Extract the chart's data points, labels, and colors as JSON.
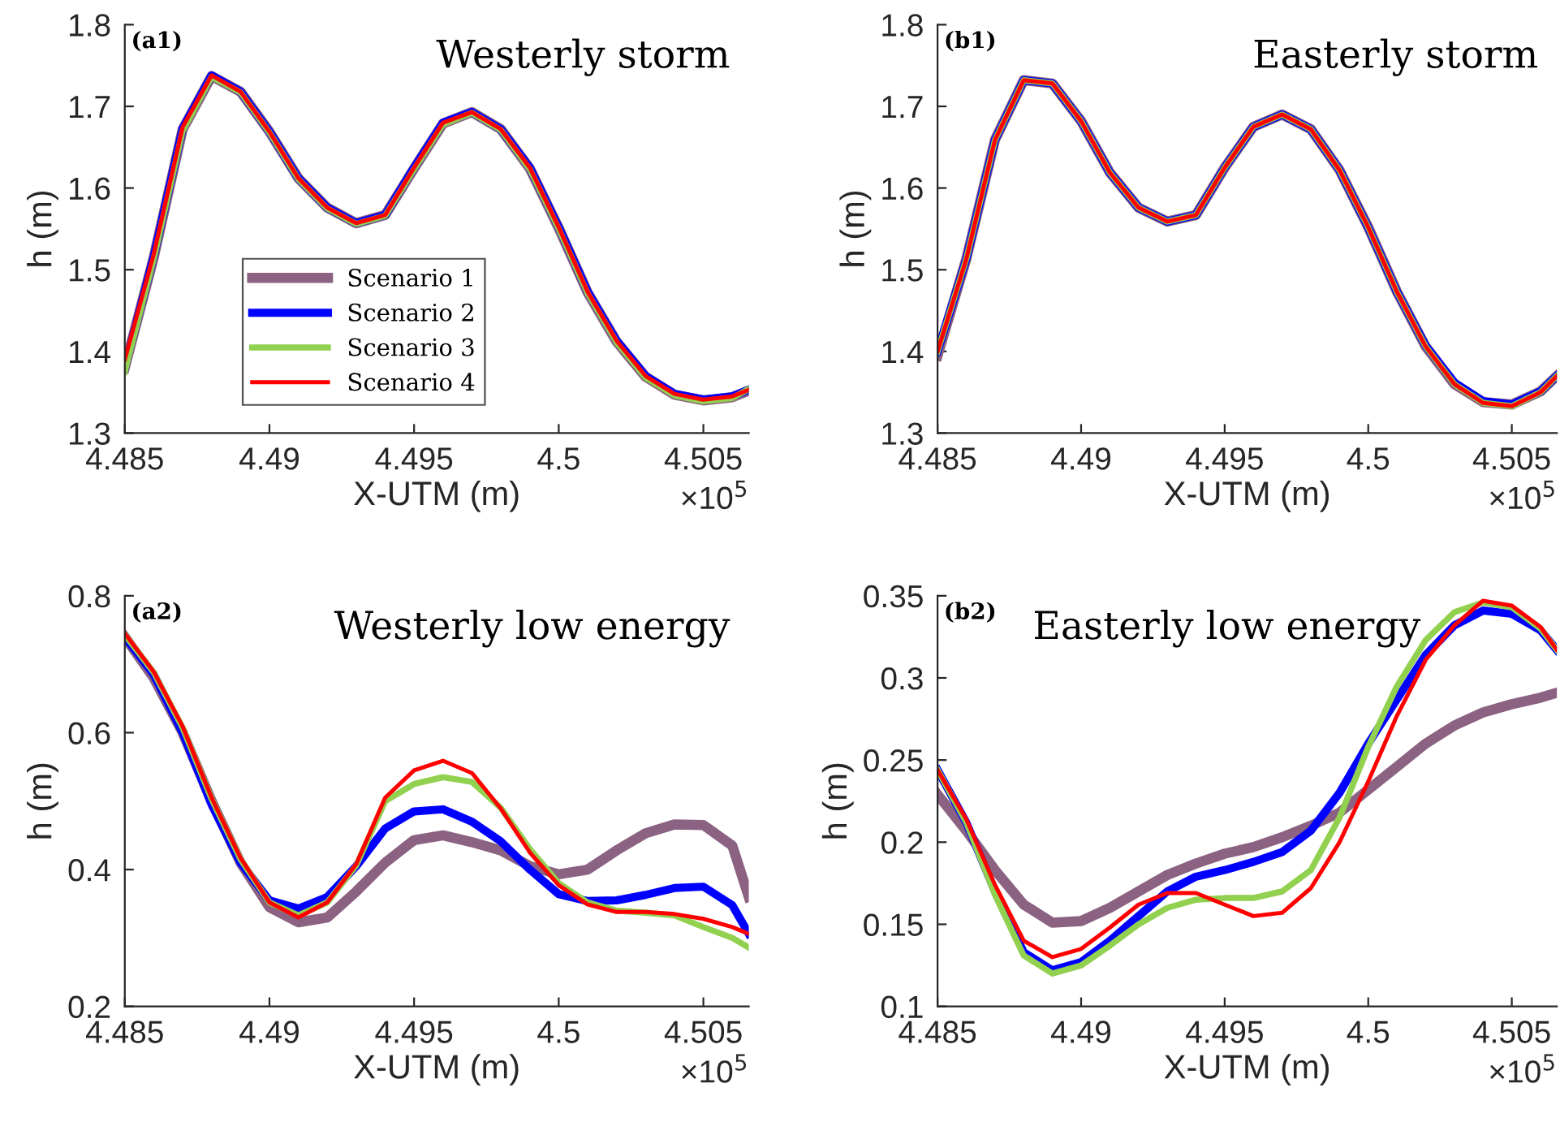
{
  "chart_data": [
    {
      "type": "line",
      "title": "Westerly storm",
      "xlabel": "X-UTM (m)",
      "ylabel": "h (m)",
      "annotations": [
        "(a1)",
        "×10$^{5}$"
      ],
      "x": [
        4.485,
        4.486,
        4.487,
        4.488,
        4.489,
        4.49,
        4.491,
        4.492,
        4.493,
        4.494,
        4.495,
        4.496,
        4.497,
        4.498,
        4.499,
        4.5,
        4.501,
        4.502,
        4.503,
        4.504,
        4.505,
        4.506,
        4.50657
      ],
      "xlim": [
        4.485,
        4.50657
      ],
      "xticks": [
        4.485,
        4.49,
        4.495,
        4.5,
        4.505
      ],
      "ylim": [
        1.3,
        1.8
      ],
      "yticks": [
        1.3,
        1.4,
        1.5,
        1.6,
        1.7,
        1.8
      ],
      "grid": false,
      "legend": "lower left",
      "series": [
        {
          "name": "Scenario 1",
          "color": "#8b6281",
          "values": [
            1.38,
            1.515,
            1.672,
            1.737,
            1.718,
            1.669,
            1.612,
            1.576,
            1.557,
            1.567,
            1.624,
            1.679,
            1.693,
            1.672,
            1.624,
            1.551,
            1.472,
            1.412,
            1.369,
            1.347,
            1.34,
            1.344,
            1.352
          ]
        },
        {
          "name": "Scenario 2",
          "color": "#0000ff",
          "values": [
            1.38,
            1.516,
            1.673,
            1.738,
            1.718,
            1.669,
            1.612,
            1.576,
            1.557,
            1.567,
            1.625,
            1.68,
            1.693,
            1.672,
            1.625,
            1.552,
            1.473,
            1.413,
            1.37,
            1.348,
            1.341,
            1.345,
            1.353
          ]
        },
        {
          "name": "Scenario 3",
          "color": "#92d050",
          "values": [
            1.375,
            1.513,
            1.67,
            1.736,
            1.717,
            1.668,
            1.611,
            1.575,
            1.556,
            1.566,
            1.623,
            1.678,
            1.692,
            1.671,
            1.623,
            1.55,
            1.471,
            1.411,
            1.368,
            1.346,
            1.339,
            1.343,
            1.354
          ]
        },
        {
          "name": "Scenario 4",
          "color": "#ff0000",
          "values": [
            1.39,
            1.519,
            1.675,
            1.738,
            1.718,
            1.669,
            1.612,
            1.576,
            1.557,
            1.567,
            1.625,
            1.68,
            1.693,
            1.672,
            1.625,
            1.552,
            1.473,
            1.413,
            1.37,
            1.348,
            1.341,
            1.345,
            1.353
          ]
        }
      ]
    },
    {
      "type": "line",
      "title": "Easterly storm",
      "xlabel": "X-UTM (m)",
      "ylabel": "h (m)",
      "annotations": [
        "(b1)",
        "×10$^{5}$"
      ],
      "x": [
        4.485,
        4.486,
        4.487,
        4.488,
        4.489,
        4.49,
        4.491,
        4.492,
        4.493,
        4.494,
        4.495,
        4.496,
        4.497,
        4.498,
        4.499,
        4.5,
        4.501,
        4.502,
        4.503,
        4.504,
        4.505,
        4.506,
        4.50657
      ],
      "xlim": [
        4.485,
        4.50657
      ],
      "xticks": [
        4.485,
        4.49,
        4.495,
        4.5,
        4.505
      ],
      "ylim": [
        1.3,
        1.8
      ],
      "yticks": [
        1.3,
        1.4,
        1.5,
        1.6,
        1.7,
        1.8
      ],
      "grid": false,
      "series": [
        {
          "color": "#8b6281",
          "values": [
            1.395,
            1.513,
            1.659,
            1.732,
            1.728,
            1.682,
            1.619,
            1.576,
            1.559,
            1.567,
            1.625,
            1.675,
            1.69,
            1.672,
            1.622,
            1.552,
            1.473,
            1.406,
            1.36,
            1.338,
            1.335,
            1.351,
            1.37
          ]
        },
        {
          "color": "#0000ff",
          "values": [
            1.4,
            1.513,
            1.659,
            1.732,
            1.728,
            1.682,
            1.619,
            1.576,
            1.559,
            1.567,
            1.625,
            1.675,
            1.69,
            1.672,
            1.622,
            1.552,
            1.473,
            1.407,
            1.362,
            1.339,
            1.335,
            1.351,
            1.37
          ]
        },
        {
          "color": "#92d050",
          "values": [
            1.4,
            1.513,
            1.659,
            1.732,
            1.728,
            1.682,
            1.619,
            1.576,
            1.559,
            1.567,
            1.625,
            1.675,
            1.69,
            1.672,
            1.622,
            1.552,
            1.473,
            1.406,
            1.36,
            1.337,
            1.333,
            1.35,
            1.37
          ]
        },
        {
          "color": "#ff0000",
          "values": [
            1.4,
            1.513,
            1.659,
            1.732,
            1.728,
            1.682,
            1.619,
            1.576,
            1.559,
            1.567,
            1.625,
            1.675,
            1.69,
            1.672,
            1.622,
            1.552,
            1.473,
            1.406,
            1.36,
            1.337,
            1.333,
            1.35,
            1.37
          ]
        }
      ]
    },
    {
      "type": "line",
      "title": "Westerly low energy",
      "xlabel": "X-UTM (m)",
      "ylabel": "h (m)",
      "annotations": [
        "(a2)",
        "×10$^{5}$"
      ],
      "x": [
        4.485,
        4.486,
        4.487,
        4.488,
        4.489,
        4.49,
        4.491,
        4.492,
        4.493,
        4.494,
        4.495,
        4.496,
        4.497,
        4.498,
        4.499,
        4.5,
        4.501,
        4.502,
        4.503,
        4.504,
        4.505,
        4.506,
        4.50657
      ],
      "xlim": [
        4.485,
        4.50657
      ],
      "xticks": [
        4.485,
        4.49,
        4.495,
        4.5,
        4.505
      ],
      "ylim": [
        0.2,
        0.8
      ],
      "yticks": [
        0.2,
        0.4,
        0.6,
        0.8
      ],
      "grid": false,
      "series": [
        {
          "color": "#8b6281",
          "values": [
            0.74,
            0.68,
            0.6,
            0.5,
            0.41,
            0.345,
            0.323,
            0.33,
            0.368,
            0.41,
            0.443,
            0.45,
            0.44,
            0.428,
            0.405,
            0.393,
            0.4,
            0.428,
            0.453,
            0.466,
            0.465,
            0.435,
            0.36
          ]
        },
        {
          "color": "#0000ff",
          "values": [
            0.74,
            0.685,
            0.6,
            0.495,
            0.41,
            0.355,
            0.343,
            0.36,
            0.405,
            0.46,
            0.485,
            0.488,
            0.47,
            0.441,
            0.4,
            0.364,
            0.354,
            0.355,
            0.363,
            0.373,
            0.375,
            0.348,
            0.306
          ]
        },
        {
          "color": "#92d050",
          "values": [
            0.743,
            0.688,
            0.607,
            0.503,
            0.415,
            0.352,
            0.333,
            0.352,
            0.406,
            0.5,
            0.525,
            0.535,
            0.528,
            0.49,
            0.43,
            0.38,
            0.352,
            0.34,
            0.337,
            0.333,
            0.316,
            0.3,
            0.286
          ]
        },
        {
          "color": "#ff0000",
          "values": [
            0.745,
            0.689,
            0.609,
            0.505,
            0.417,
            0.352,
            0.33,
            0.352,
            0.408,
            0.505,
            0.545,
            0.559,
            0.541,
            0.489,
            0.425,
            0.377,
            0.349,
            0.338,
            0.338,
            0.335,
            0.328,
            0.316,
            0.306
          ]
        }
      ]
    },
    {
      "type": "line",
      "title": "Easterly low energy",
      "xlabel": "X-UTM (m)",
      "ylabel": "h (m)",
      "annotations": [
        "(b2)",
        "×10$^{5}$"
      ],
      "x": [
        4.485,
        4.486,
        4.487,
        4.488,
        4.489,
        4.49,
        4.491,
        4.492,
        4.493,
        4.494,
        4.495,
        4.496,
        4.497,
        4.498,
        4.499,
        4.5,
        4.501,
        4.502,
        4.503,
        4.504,
        4.505,
        4.506,
        4.50657
      ],
      "xlim": [
        4.485,
        4.50657
      ],
      "xticks": [
        4.485,
        4.49,
        4.495,
        4.5,
        4.505
      ],
      "ylim": [
        0.1,
        0.35
      ],
      "yticks": [
        0.1,
        0.15,
        0.2,
        0.25,
        0.3,
        0.35
      ],
      "grid": false,
      "series": [
        {
          "color": "#8b6281",
          "values": [
            0.229,
            0.207,
            0.183,
            0.162,
            0.151,
            0.152,
            0.16,
            0.17,
            0.18,
            0.187,
            0.193,
            0.197,
            0.203,
            0.21,
            0.218,
            0.232,
            0.246,
            0.26,
            0.271,
            0.279,
            0.284,
            0.288,
            0.291
          ]
        },
        {
          "color": "#0000ff",
          "values": [
            0.244,
            0.212,
            0.17,
            0.133,
            0.122,
            0.127,
            0.14,
            0.155,
            0.17,
            0.179,
            0.183,
            0.188,
            0.194,
            0.207,
            0.23,
            0.26,
            0.287,
            0.314,
            0.332,
            0.341,
            0.339,
            0.329,
            0.317
          ]
        },
        {
          "color": "#92d050",
          "values": [
            0.244,
            0.212,
            0.168,
            0.131,
            0.12,
            0.125,
            0.137,
            0.15,
            0.16,
            0.165,
            0.166,
            0.166,
            0.17,
            0.183,
            0.215,
            0.258,
            0.295,
            0.323,
            0.34,
            0.346,
            0.343,
            0.33,
            0.317
          ]
        },
        {
          "color": "#ff0000",
          "values": [
            0.244,
            0.214,
            0.174,
            0.14,
            0.13,
            0.135,
            0.148,
            0.162,
            0.169,
            0.169,
            0.162,
            0.155,
            0.157,
            0.172,
            0.2,
            0.237,
            0.277,
            0.311,
            0.332,
            0.347,
            0.344,
            0.331,
            0.317
          ]
        }
      ]
    }
  ]
}
